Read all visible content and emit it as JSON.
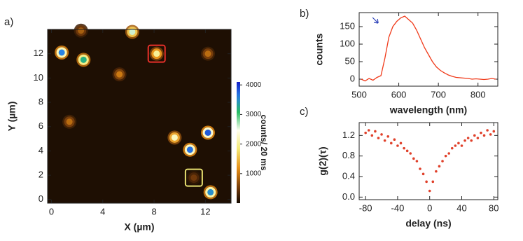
{
  "chart_data": [
    {
      "type": "spot-map",
      "panel_label": "a)",
      "xlabel": "X (µm)",
      "ylabel": "Y (µm)",
      "xlim": [
        -0.3,
        14
      ],
      "ylim": [
        -0.3,
        14
      ],
      "xticks": [
        0,
        4,
        8,
        12
      ],
      "yticks": [
        0,
        2,
        4,
        6,
        8,
        10,
        12
      ],
      "x": [
        0.8,
        2.5,
        6.3,
        2.3,
        8.2,
        12.2,
        5.3,
        1.4,
        9.6,
        10.8,
        12.2,
        11.1,
        12.4
      ],
      "y": [
        12.1,
        11.5,
        13.8,
        13.9,
        12.0,
        12.0,
        10.3,
        6.4,
        5.1,
        4.1,
        5.5,
        1.8,
        0.6
      ],
      "counts": [
        3600,
        3200,
        2600,
        800,
        2000,
        900,
        1000,
        900,
        2200,
        3700,
        3800,
        500,
        3500
      ],
      "boxes": [
        {
          "spot": 4,
          "color": "#e8302a"
        },
        {
          "spot": 11,
          "color": "#e8e070"
        }
      ],
      "colorbar": {
        "label": "counts/ 20 ms",
        "lim": [
          0,
          4100
        ],
        "ticks": [
          1000,
          2000,
          3000,
          4000
        ]
      }
    },
    {
      "type": "line",
      "panel_label": "b)",
      "xlabel": "wavelength (nm)",
      "ylabel": "counts",
      "color": "#f03a1a",
      "xlim": [
        500,
        850
      ],
      "ylim": [
        -20,
        190
      ],
      "xticks": [
        500,
        600,
        700,
        800
      ],
      "yticks": [
        0,
        50,
        100,
        150
      ],
      "x": [
        505,
        515,
        525,
        535,
        545,
        555,
        565,
        575,
        585,
        595,
        605,
        615,
        625,
        635,
        645,
        655,
        665,
        675,
        685,
        695,
        705,
        715,
        725,
        735,
        745,
        755,
        765,
        775,
        785,
        795,
        805,
        815,
        825,
        835,
        845
      ],
      "values": [
        0,
        -5,
        2,
        -3,
        5,
        10,
        60,
        120,
        150,
        165,
        175,
        180,
        170,
        160,
        140,
        115,
        90,
        70,
        50,
        35,
        25,
        18,
        12,
        8,
        5,
        4,
        3,
        2,
        0,
        1,
        0,
        -1,
        0,
        2,
        0
      ],
      "arrow": {
        "x": 548,
        "y": 160,
        "color": "#2a3fb8"
      }
    },
    {
      "type": "scatter",
      "panel_label": "c)",
      "xlabel": "delay (ns)",
      "ylabel": "g(2)(τ)",
      "color": "#e0402a",
      "xlim": [
        -88,
        85
      ],
      "ylim": [
        -0.05,
        1.45
      ],
      "xticks": [
        -80,
        -40,
        0,
        40,
        80
      ],
      "yticks": [
        {
          "value": 0,
          "label": "0.0"
        },
        0.4,
        0.8,
        1.2
      ],
      "x": [
        -80,
        -76,
        -72,
        -68,
        -64,
        -60,
        -56,
        -52,
        -48,
        -44,
        -40,
        -36,
        -32,
        -28,
        -24,
        -20,
        -16,
        -12,
        -8,
        -4,
        0,
        4,
        8,
        12,
        16,
        20,
        24,
        28,
        32,
        36,
        40,
        44,
        48,
        52,
        56,
        60,
        64,
        68,
        72,
        76,
        80
      ],
      "values": [
        1.25,
        1.3,
        1.2,
        1.28,
        1.15,
        1.22,
        1.1,
        1.18,
        1.05,
        1.12,
        1.0,
        1.05,
        0.95,
        0.9,
        0.85,
        0.75,
        0.7,
        0.55,
        0.45,
        0.3,
        0.12,
        0.3,
        0.5,
        0.6,
        0.7,
        0.8,
        0.85,
        0.95,
        1.0,
        1.05,
        1.0,
        1.1,
        1.15,
        1.1,
        1.2,
        1.15,
        1.25,
        1.2,
        1.3,
        1.22,
        1.28
      ]
    }
  ]
}
